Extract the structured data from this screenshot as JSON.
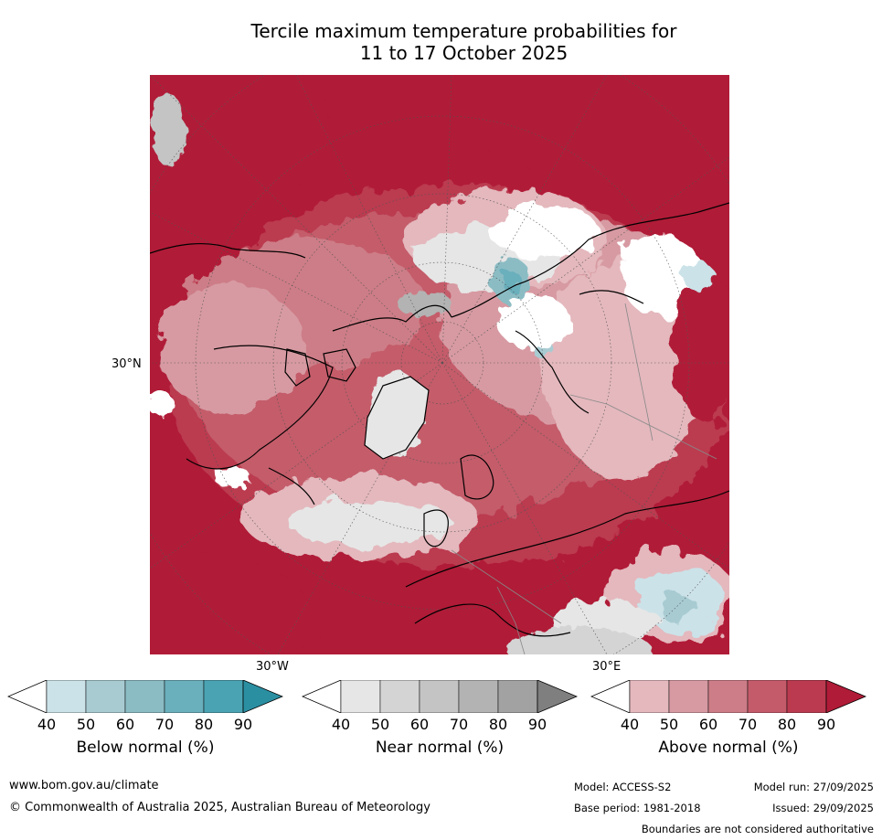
{
  "title": {
    "line1": "Tercile maximum temperature probabilities for",
    "line2": "11 to 17 October 2025"
  },
  "map": {
    "lat_label": "30°N",
    "lon_label_left": "30°W",
    "lon_label_right": "30°E"
  },
  "legend": {
    "tick_values": [
      "40",
      "50",
      "60",
      "70",
      "80",
      "90"
    ],
    "below": {
      "title": "Below normal (%)",
      "colors": [
        "#ffffff",
        "#cbe2e8",
        "#a8cbd2",
        "#8bbcc4",
        "#6aafbc",
        "#4aa3b3",
        "#2b8fa2"
      ]
    },
    "near": {
      "title": "Near normal (%)",
      "colors": [
        "#ffffff",
        "#e6e6e6",
        "#d4d4d4",
        "#c4c4c4",
        "#b3b3b3",
        "#a2a2a2",
        "#7f7f7f"
      ]
    },
    "above": {
      "title": "Above normal (%)",
      "colors": [
        "#ffffff",
        "#e4b8bd",
        "#d79aa2",
        "#cd7d87",
        "#c45b6a",
        "#bb3a4f",
        "#b01b37"
      ]
    }
  },
  "footer": {
    "website": "www.bom.gov.au/climate",
    "copyright": "© Commonwealth of Australia 2025, Australian Bureau of Meteorology",
    "model": "Model: ACCESS-S2",
    "base_period": "Base period: 1981-2018",
    "model_run": "Model run: 27/09/2025",
    "issued": "Issued: 29/09/2025",
    "disclaimer": "Boundaries are not considered authoritative"
  }
}
